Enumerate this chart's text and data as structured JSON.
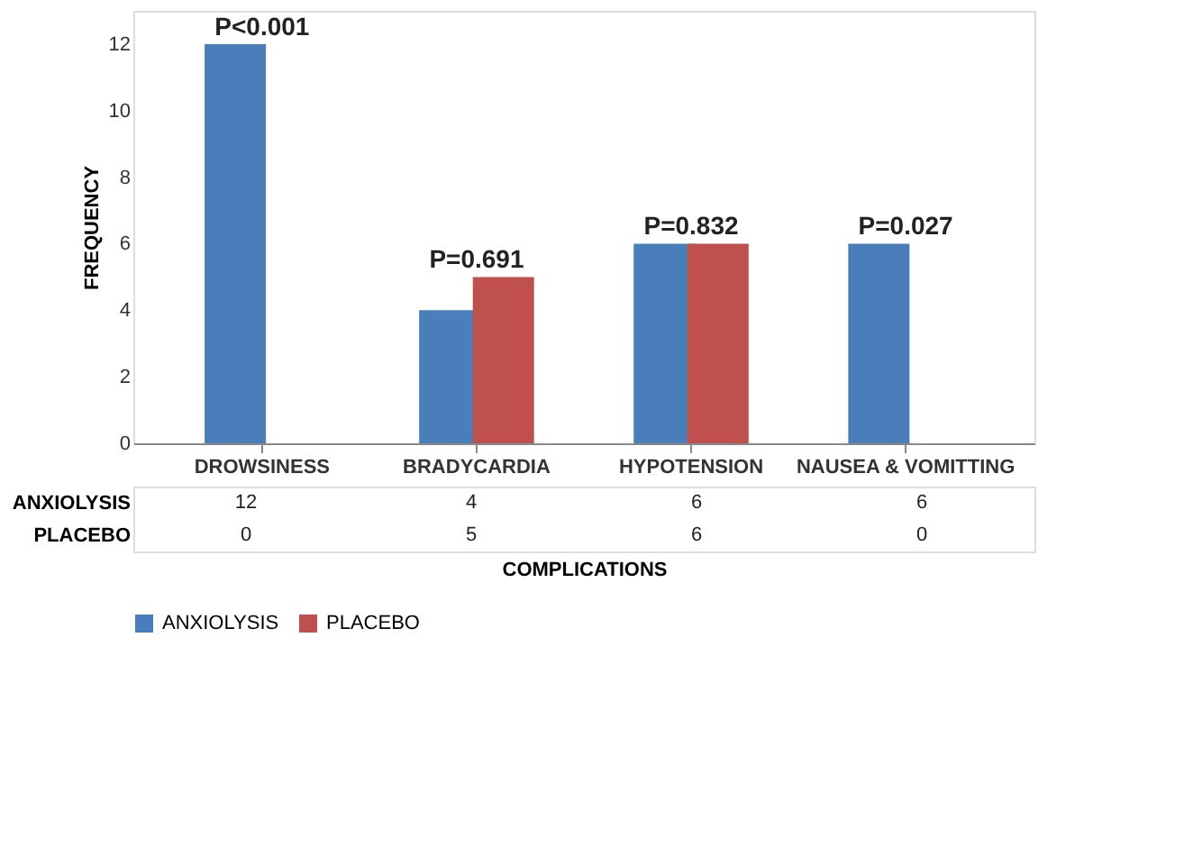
{
  "chart_data": {
    "type": "bar",
    "ylabel": "FREQUENCY",
    "xlabel": "COMPLICATIONS",
    "categories": [
      "DROWSINESS",
      "BRADYCARDIA",
      "HYPOTENSION",
      "NAUSEA & VOMITTING"
    ],
    "series": [
      {
        "name": "ANXIOLYSIS",
        "color": "#4a7ebb",
        "values": [
          12,
          4,
          6,
          6
        ]
      },
      {
        "name": "PLACEBO",
        "color": "#c0504d",
        "values": [
          0,
          5,
          6,
          0
        ]
      }
    ],
    "ylim": [
      0,
      13
    ],
    "yticks": [
      0,
      2,
      4,
      6,
      8,
      10,
      12
    ],
    "grid": false,
    "legend": "bottom",
    "data_labels": true,
    "annotations": [
      {
        "text": "P<0.001",
        "x": "DROWSINESS",
        "y": 12
      },
      {
        "text": "P=0.691",
        "x": "BRADYCARDIA",
        "y": 5
      },
      {
        "text": "P=0.832",
        "x": "HYPOTENSION",
        "y": 6
      },
      {
        "text": "P=0.027",
        "x": "NAUSEA & VOMITTING",
        "y": 6
      }
    ]
  }
}
